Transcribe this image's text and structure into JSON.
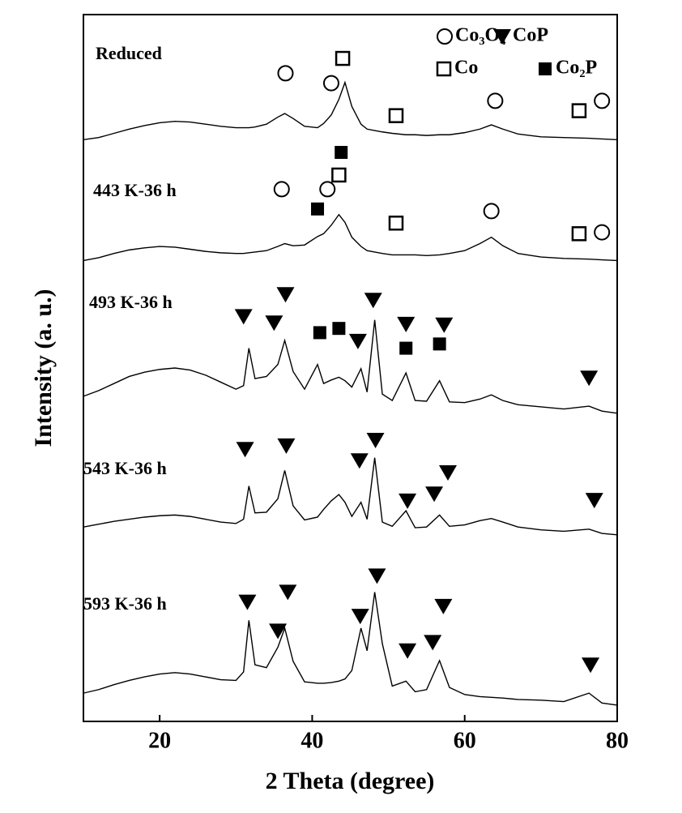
{
  "chart_data": {
    "type": "line",
    "x_label": "2 Theta (degree)",
    "y_label": "Intensity (a. u.)",
    "xlim": [
      10,
      80
    ],
    "xticks": [
      20,
      40,
      60,
      80
    ],
    "ylim": [
      0,
      100
    ],
    "x": [
      10,
      12,
      14,
      16,
      18,
      20,
      22,
      24,
      26,
      28,
      30,
      31,
      31.7,
      32.5,
      34,
      35.5,
      36.4,
      37.5,
      39,
      40.7,
      41.5,
      42.5,
      43.5,
      44.3,
      45.2,
      46.4,
      47.2,
      48.2,
      49.2,
      50.5,
      52.3,
      53.5,
      55,
      56.7,
      58,
      60,
      62,
      63.5,
      65,
      67,
      70,
      73,
      76.3,
      78,
      80
    ],
    "series": [
      {
        "name": "Reduced",
        "color": "#000000",
        "values": [
          82.3,
          82.6,
          83.2,
          83.8,
          84.3,
          84.7,
          84.9,
          84.8,
          84.5,
          84.2,
          84,
          84,
          84,
          84.1,
          84.5,
          85.5,
          86,
          85.3,
          84.2,
          84,
          84.6,
          85.8,
          88,
          90.4,
          87,
          84.5,
          83.8,
          83.6,
          83.4,
          83.2,
          83,
          83,
          82.9,
          83,
          83,
          83.3,
          83.8,
          84.4,
          83.8,
          83.1,
          82.7,
          82.6,
          82.5,
          82.4,
          82.3
        ]
      },
      {
        "name": "443 K-36 h",
        "color": "#000000",
        "values": [
          65.2,
          65.6,
          66.2,
          66.7,
          67,
          67.2,
          67.1,
          66.8,
          66.5,
          66.3,
          66.2,
          66.2,
          66.3,
          66.4,
          66.6,
          67.2,
          67.6,
          67.3,
          67.4,
          68.6,
          69,
          70.2,
          71.7,
          70.6,
          68.5,
          67.2,
          66.6,
          66.4,
          66.2,
          66,
          66,
          66,
          65.9,
          66,
          66.2,
          66.6,
          67.6,
          68.5,
          67.3,
          66.2,
          65.7,
          65.5,
          65.4,
          65.3,
          65.2
        ]
      },
      {
        "name": "493 K-36 h",
        "color": "#000000",
        "values": [
          46,
          46.8,
          47.8,
          48.8,
          49.4,
          49.8,
          50,
          49.7,
          49,
          48,
          47,
          47.5,
          52.8,
          48.5,
          48.8,
          50.5,
          53.9,
          49.5,
          47,
          50.5,
          47.8,
          48.3,
          48.7,
          48.2,
          47.3,
          49.9,
          46.6,
          56.8,
          46.3,
          45.4,
          49.3,
          45.4,
          45.3,
          48.2,
          45.2,
          45.1,
          45.6,
          46.2,
          45.4,
          44.8,
          44.5,
          44.2,
          44.6,
          43.9,
          43.6
        ]
      },
      {
        "name": "543 K-36 h",
        "color": "#000000",
        "values": [
          27.5,
          27.9,
          28.3,
          28.6,
          28.9,
          29.1,
          29.2,
          29,
          28.6,
          28.2,
          28,
          28.6,
          33.3,
          29.5,
          29.6,
          31.5,
          35.5,
          30.5,
          28.5,
          28.9,
          30,
          31.2,
          32.1,
          31,
          29,
          31,
          28.6,
          37.3,
          28.2,
          27.6,
          29.8,
          27.4,
          27.5,
          29.2,
          27.6,
          27.8,
          28.4,
          28.7,
          28.2,
          27.5,
          27.1,
          26.9,
          27.2,
          26.6,
          26.4
        ]
      },
      {
        "name": "593 K-36 h",
        "color": "#000000",
        "values": [
          4,
          4.5,
          5.2,
          5.8,
          6.3,
          6.7,
          6.9,
          6.7,
          6.3,
          5.9,
          5.8,
          7,
          14.3,
          8,
          7.6,
          10.5,
          13.2,
          8.5,
          5.6,
          5.4,
          5.4,
          5.5,
          5.7,
          6,
          7.2,
          13.2,
          10,
          18.3,
          11,
          5,
          5.7,
          4.2,
          4.5,
          8.6,
          4.8,
          3.8,
          3.5,
          3.4,
          3.3,
          3.1,
          3,
          2.8,
          4,
          2.6,
          2.3
        ]
      }
    ],
    "phases": [
      {
        "name": "Co₃O₄",
        "symbol": "circle-open",
        "x": [
          36.5,
          42.5,
          64,
          78,
          36,
          42,
          63.5,
          78
        ],
        "y": [
          91.7,
          90.3,
          87.8,
          87.8,
          75.3,
          75.3,
          72.2,
          69.2
        ]
      },
      {
        "name": "CoP",
        "symbol": "triangle-down",
        "x": [
          31,
          35,
          36.5,
          46,
          48,
          52.3,
          57.3,
          76.3,
          31.2,
          36.6,
          46.2,
          48.3,
          52.5,
          56,
          57.8,
          77,
          31.5,
          35.5,
          36.8,
          46.3,
          48.5,
          52.5,
          55.8,
          57.2,
          76.5
        ],
        "y": [
          57.3,
          56.4,
          60.4,
          53.8,
          59.6,
          56.2,
          56.1,
          48.6,
          38.5,
          39,
          36.9,
          39.8,
          31.2,
          32.2,
          35.2,
          31.3,
          16.9,
          12.8,
          18.3,
          14.9,
          20.6,
          10,
          11.2,
          16.3,
          8
        ]
      },
      {
        "name": "Co",
        "symbol": "square-open",
        "x": [
          44,
          51,
          75,
          43.5,
          51,
          75
        ],
        "y": [
          93.8,
          85.7,
          86.4,
          77.3,
          70.5,
          69
        ]
      },
      {
        "name": "Co₂P",
        "symbol": "square",
        "x": [
          43.8,
          40.7,
          41,
          43.5,
          52.3,
          56.7
        ],
        "y": [
          80.5,
          72.5,
          55,
          55.6,
          52.8,
          53.4
        ]
      }
    ]
  }
}
